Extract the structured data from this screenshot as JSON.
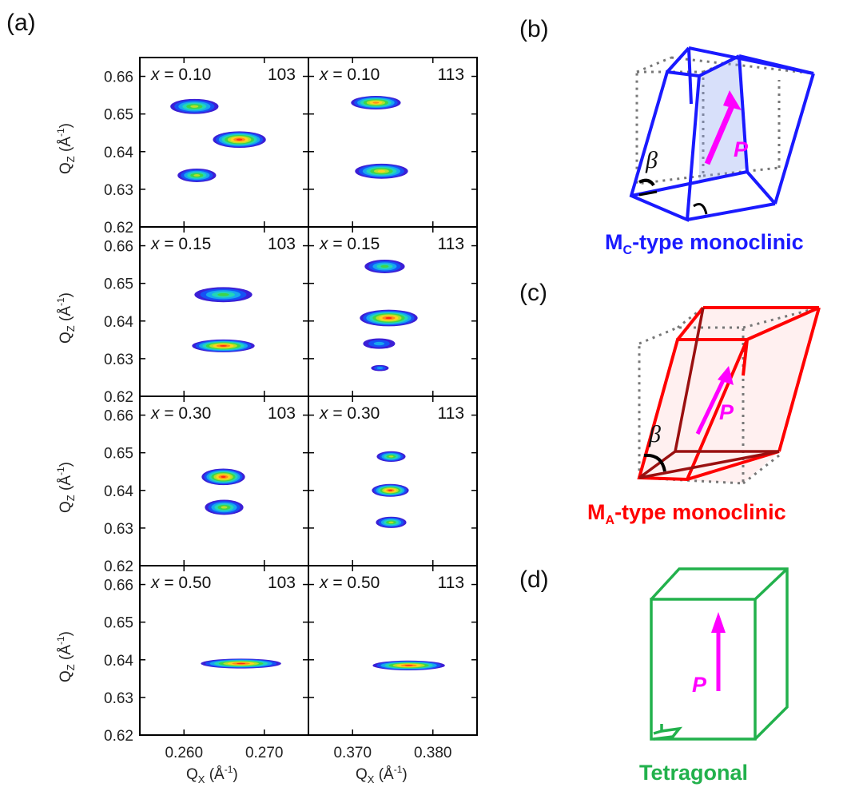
{
  "panel_labels": {
    "a": "(a)",
    "b": "(b)",
    "c": "(c)",
    "d": "(d)"
  },
  "axes": {
    "x_label": "Q",
    "x_sub": "X",
    "x_unit_open": " (Å",
    "x_unit_sup": "-1",
    "x_unit_close": ")",
    "y_label": "Q",
    "y_sub": "Z",
    "y_unit_open": " (Å",
    "y_unit_sup": "-1",
    "y_unit_close": ")"
  },
  "x_symbol": "x",
  "chart_data": {
    "type": "heatmap",
    "description_rows": "x composition",
    "columns": [
      {
        "reflection": "103",
        "xticks": [
          0.26,
          0.27
        ],
        "xtick_labels": [
          "0.260",
          "0.270"
        ],
        "xlim": [
          0.2545,
          0.2755
        ]
      },
      {
        "reflection": "113",
        "xticks": [
          0.37,
          0.38
        ],
        "xtick_labels": [
          "0.370",
          "0.380"
        ],
        "xlim": [
          0.3645,
          0.3855
        ]
      }
    ],
    "ylim": [
      0.62,
      0.665
    ],
    "yticks": [
      0.62,
      0.63,
      0.64,
      0.65,
      0.66
    ],
    "ytick_labels": [
      "0.62",
      "0.63",
      "0.64",
      "0.65",
      "0.66"
    ],
    "rows": [
      {
        "x": "0.10",
        "label_103": "x = 0.10",
        "label_113": "x = 0.10",
        "peaks_103": [
          {
            "qx": 0.2613,
            "qz": 0.652,
            "sx": 0.003,
            "sz": 0.002,
            "peak": 0.72
          },
          {
            "qx": 0.2669,
            "qz": 0.6432,
            "sx": 0.0033,
            "sz": 0.0022,
            "peak": 1.0
          },
          {
            "qx": 0.2616,
            "qz": 0.6337,
            "sx": 0.0024,
            "sz": 0.0018,
            "peak": 0.7
          }
        ],
        "peaks_113": [
          {
            "qx": 0.3729,
            "qz": 0.653,
            "sx": 0.0031,
            "sz": 0.0018,
            "peak": 0.86
          },
          {
            "qx": 0.3736,
            "qz": 0.6348,
            "sx": 0.0033,
            "sz": 0.002,
            "peak": 0.76
          }
        ]
      },
      {
        "x": "0.15",
        "label_103": "x = 0.15",
        "label_113": "x = 0.15",
        "peaks_103": [
          {
            "qx": 0.2649,
            "qz": 0.647,
            "sx": 0.0036,
            "sz": 0.002,
            "peak": 0.6
          },
          {
            "qx": 0.2649,
            "qz": 0.6334,
            "sx": 0.0039,
            "sz": 0.0017,
            "peak": 1.0
          }
        ],
        "peaks_113": [
          {
            "qx": 0.374,
            "qz": 0.6545,
            "sx": 0.0025,
            "sz": 0.0018,
            "peak": 0.6
          },
          {
            "qx": 0.3745,
            "qz": 0.6408,
            "sx": 0.0036,
            "sz": 0.0022,
            "peak": 1.0
          },
          {
            "qx": 0.3733,
            "qz": 0.634,
            "sx": 0.002,
            "sz": 0.0014,
            "peak": 0.38
          },
          {
            "qx": 0.3734,
            "qz": 0.6275,
            "sx": 0.0011,
            "sz": 0.0008,
            "peak": 0.32
          }
        ]
      },
      {
        "x": "0.30",
        "label_103": "x = 0.30",
        "label_113": "x = 0.30",
        "peaks_103": [
          {
            "qx": 0.2649,
            "qz": 0.6436,
            "sx": 0.0027,
            "sz": 0.0022,
            "peak": 1.0
          },
          {
            "qx": 0.265,
            "qz": 0.6355,
            "sx": 0.0024,
            "sz": 0.002,
            "peak": 0.7
          }
        ],
        "peaks_113": [
          {
            "qx": 0.3748,
            "qz": 0.649,
            "sx": 0.0018,
            "sz": 0.0014,
            "peak": 0.62
          },
          {
            "qx": 0.3747,
            "qz": 0.64,
            "sx": 0.0023,
            "sz": 0.0017,
            "peak": 0.95
          },
          {
            "qx": 0.3748,
            "qz": 0.6315,
            "sx": 0.0019,
            "sz": 0.0015,
            "peak": 0.68
          }
        ]
      },
      {
        "x": "0.50",
        "label_103": "x = 0.50",
        "label_113": "x = 0.50",
        "peaks_103": [
          {
            "qx": 0.2671,
            "qz": 0.639,
            "sx": 0.005,
            "sz": 0.0013,
            "peak": 0.95
          }
        ],
        "peaks_113": [
          {
            "qx": 0.377,
            "qz": 0.6385,
            "sx": 0.0045,
            "sz": 0.0013,
            "peak": 0.95
          }
        ]
      }
    ],
    "colormap": [
      "#3b1fd6",
      "#1552f5",
      "#17a6ef",
      "#23d6b8",
      "#3ed44a",
      "#b6e02a",
      "#ffd21f",
      "#ff8a17",
      "#ff2a12"
    ]
  },
  "schematics": {
    "b": {
      "caption_main": "M",
      "caption_sub": "C",
      "caption_rest": "-type monoclinic",
      "color": "#1a1aff",
      "beta": "β",
      "vector": "P",
      "vector_color": "#ff00ff"
    },
    "c": {
      "caption_main": "M",
      "caption_sub": "A",
      "caption_rest": "-type monoclinic",
      "color": "#ff0000",
      "beta": "β",
      "vector": "P",
      "vector_color": "#ff00ff"
    },
    "d": {
      "caption": "Tetragonal",
      "color": "#22b14c",
      "vector": "P",
      "vector_color": "#ff00ff"
    }
  }
}
